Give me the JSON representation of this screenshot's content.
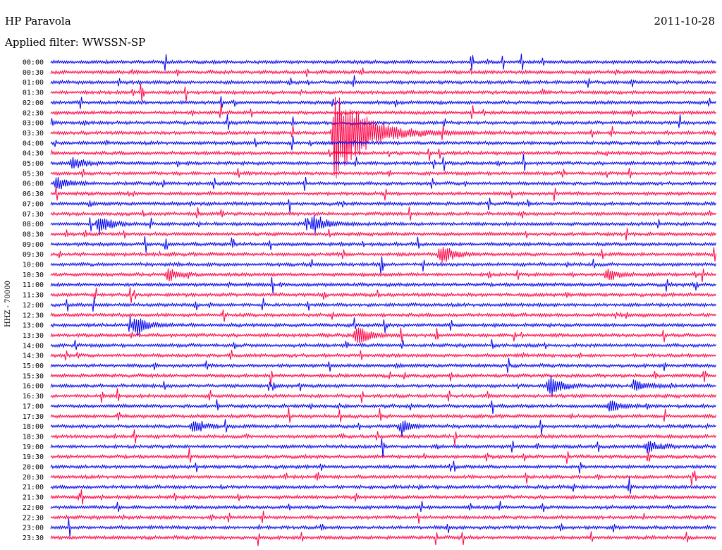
{
  "header": {
    "station": "HP Paravola",
    "date": "2011-10-28",
    "filter": "Applied filter: WWSSN-SP",
    "channel": "HHZ - 70000"
  },
  "colors": {
    "trace_a": "#0000ee",
    "trace_b": "#ff0044"
  },
  "chart_data": {
    "type": "line",
    "title": "HP Paravola",
    "subtitle": "Applied filter: WWSSN-SP",
    "ylabel": "HHZ - 70000",
    "xlabel": "",
    "grid": false,
    "legend": "none",
    "categories": [
      "00:00",
      "00:30",
      "01:00",
      "01:30",
      "02:00",
      "02:30",
      "03:00",
      "03:30",
      "04:00",
      "04:30",
      "05:00",
      "05:30",
      "06:00",
      "06:30",
      "07:00",
      "07:30",
      "08:00",
      "08:30",
      "09:00",
      "09:30",
      "10:00",
      "10:30",
      "11:00",
      "11:30",
      "12:00",
      "12:30",
      "13:00",
      "13:30",
      "14:00",
      "14:30",
      "15:00",
      "15:30",
      "16:00",
      "16:30",
      "17:00",
      "17:30",
      "18:00",
      "18:30",
      "19:00",
      "19:30",
      "20:00",
      "20:30",
      "21:00",
      "21:30",
      "22:00",
      "22:30",
      "23:00",
      "23:30"
    ],
    "x_range_minutes": [
      0,
      30
    ],
    "events": [
      {
        "row": "03:30",
        "minute": 12.8,
        "strength": "large"
      },
      {
        "row": "08:00",
        "minute": 2.2,
        "strength": "medium"
      },
      {
        "row": "08:00",
        "minute": 11.9,
        "strength": "medium"
      },
      {
        "row": "09:30",
        "minute": 17.6,
        "strength": "medium"
      },
      {
        "row": "13:00",
        "minute": 3.8,
        "strength": "medium"
      },
      {
        "row": "13:30",
        "minute": 13.8,
        "strength": "medium"
      },
      {
        "row": "16:00",
        "minute": 22.5,
        "strength": "medium"
      },
      {
        "row": "16:00",
        "minute": 26.3,
        "strength": "small"
      },
      {
        "row": "17:00",
        "minute": 25.2,
        "strength": "small"
      },
      {
        "row": "18:00",
        "minute": 6.4,
        "strength": "small"
      },
      {
        "row": "18:00",
        "minute": 15.8,
        "strength": "small"
      },
      {
        "row": "19:00",
        "minute": 26.9,
        "strength": "small"
      },
      {
        "row": "10:30",
        "minute": 5.3,
        "strength": "small"
      },
      {
        "row": "10:30",
        "minute": 25.1,
        "strength": "small"
      },
      {
        "row": "05:00",
        "minute": 1.0,
        "strength": "small"
      },
      {
        "row": "06:00",
        "minute": 0.3,
        "strength": "small"
      }
    ]
  }
}
